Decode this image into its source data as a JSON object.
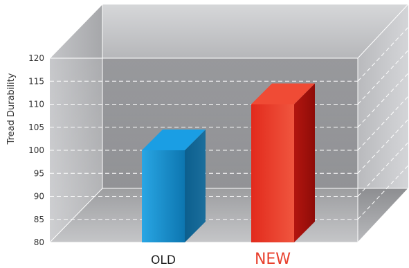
{
  "chart_data": {
    "type": "bar",
    "title": "",
    "xlabel": "",
    "ylabel": "Tread Durability",
    "ylim": [
      80,
      120
    ],
    "yticks": [
      80,
      85,
      90,
      95,
      100,
      105,
      110,
      115,
      120
    ],
    "grid": true,
    "categories": [
      "OLD",
      "NEW"
    ],
    "values": [
      100,
      110
    ],
    "colors": {
      "OLD": "#1a92d0",
      "NEW": "#e8402d"
    },
    "label_colors": {
      "OLD": "#222222",
      "NEW": "#e8402d"
    }
  }
}
